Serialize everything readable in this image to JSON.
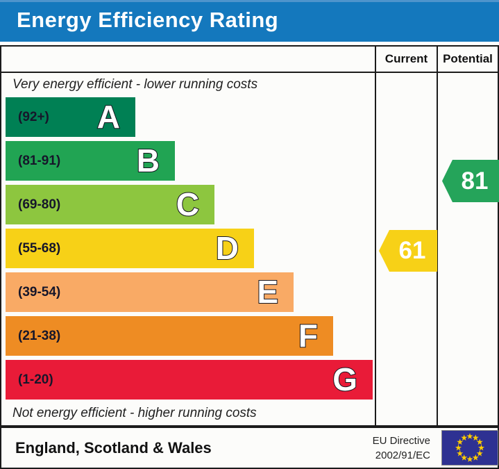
{
  "title": "Energy Efficiency Rating",
  "table": {
    "column_current": "Current",
    "column_potential": "Potential",
    "top_note": "Very energy efficient - lower running costs",
    "bottom_note": "Not energy efficient - higher running costs"
  },
  "bands": [
    {
      "letter": "A",
      "range": "(92+)",
      "color": "#008054"
    },
    {
      "letter": "B",
      "range": "(81-91)",
      "color": "#21a453"
    },
    {
      "letter": "C",
      "range": "(69-80)",
      "color": "#8dc63f"
    },
    {
      "letter": "D",
      "range": "(55-68)",
      "color": "#f7d117"
    },
    {
      "letter": "E",
      "range": "(39-54)",
      "color": "#f9aa65"
    },
    {
      "letter": "F",
      "range": "(21-38)",
      "color": "#ee8c23"
    },
    {
      "letter": "G",
      "range": "(1-20)",
      "color": "#e91b38"
    }
  ],
  "ratings": {
    "current": {
      "value": "61",
      "color": "#f7d117"
    },
    "potential": {
      "value": "81",
      "color": "#25a45a"
    }
  },
  "footer": {
    "region": "England, Scotland & Wales",
    "directive_line1": "EU Directive",
    "directive_line2": "2002/91/EC"
  },
  "colors": {
    "title_bar": "#1478bd",
    "border": "#1b1b1b",
    "eu_flag_blue": "#2e3192",
    "eu_star_yellow": "#ffcc00"
  },
  "chart_data": {
    "type": "bar",
    "title": "Energy Efficiency Rating",
    "categories": [
      "A",
      "B",
      "C",
      "D",
      "E",
      "F",
      "G"
    ],
    "band_ranges": [
      "92+",
      "81-91",
      "69-80",
      "55-68",
      "39-54",
      "21-38",
      "1-20"
    ],
    "band_colors": [
      "#008054",
      "#21a453",
      "#8dc63f",
      "#f7d117",
      "#f9aa65",
      "#ee8c23",
      "#e91b38"
    ],
    "series": [
      {
        "name": "Current",
        "values": [
          61
        ],
        "band": "D",
        "color": "#f7d117"
      },
      {
        "name": "Potential",
        "values": [
          81
        ],
        "band": "B",
        "color": "#25a45a"
      }
    ],
    "value_range": [
      1,
      100
    ],
    "annotations": [
      "Very energy efficient - lower running costs",
      "Not energy efficient - higher running costs"
    ],
    "footer_region": "England, Scotland & Wales",
    "eu_directive": "EU Directive 2002/91/EC"
  }
}
